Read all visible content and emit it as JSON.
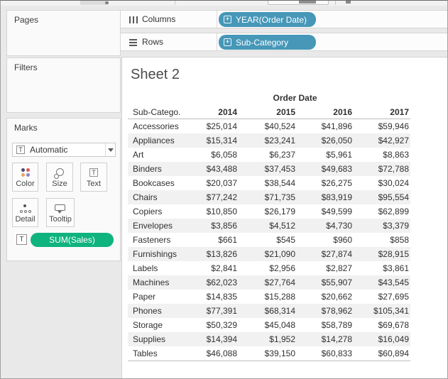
{
  "shelves": {
    "columns": {
      "label": "Columns",
      "pill": "YEAR(Order Date)"
    },
    "rows": {
      "label": "Rows",
      "pill": "Sub-Category"
    }
  },
  "panels": {
    "pages": {
      "label": "Pages"
    },
    "filters": {
      "label": "Filters"
    },
    "marks": {
      "label": "Marks",
      "mark_type_dropdown": {
        "value": "Automatic",
        "icon": "text-mark-icon"
      },
      "buttons": {
        "color": "Color",
        "size": "Size",
        "text": "Text",
        "detail": "Detail",
        "tooltip": "Tooltip"
      },
      "encoding_pill": "SUM(Sales)"
    }
  },
  "sheet": {
    "title": "Sheet 2"
  },
  "chart_data": {
    "type": "table",
    "title": "Sheet 2",
    "column_field": "Order Date",
    "row_field": "Sub-Category",
    "row_field_header": "Sub-Catego..",
    "measure": "SUM(Sales)",
    "columns": [
      "2014",
      "2015",
      "2016",
      "2017"
    ],
    "rows": [
      {
        "label": "Accessories",
        "values": [
          "$25,014",
          "$40,524",
          "$41,896",
          "$59,946"
        ]
      },
      {
        "label": "Appliances",
        "values": [
          "$15,314",
          "$23,241",
          "$26,050",
          "$42,927"
        ]
      },
      {
        "label": "Art",
        "values": [
          "$6,058",
          "$6,237",
          "$5,961",
          "$8,863"
        ]
      },
      {
        "label": "Binders",
        "values": [
          "$43,488",
          "$37,453",
          "$49,683",
          "$72,788"
        ]
      },
      {
        "label": "Bookcases",
        "values": [
          "$20,037",
          "$38,544",
          "$26,275",
          "$30,024"
        ]
      },
      {
        "label": "Chairs",
        "values": [
          "$77,242",
          "$71,735",
          "$83,919",
          "$95,554"
        ]
      },
      {
        "label": "Copiers",
        "values": [
          "$10,850",
          "$26,179",
          "$49,599",
          "$62,899"
        ]
      },
      {
        "label": "Envelopes",
        "values": [
          "$3,856",
          "$4,512",
          "$4,730",
          "$3,379"
        ]
      },
      {
        "label": "Fasteners",
        "values": [
          "$661",
          "$545",
          "$960",
          "$858"
        ]
      },
      {
        "label": "Furnishings",
        "values": [
          "$13,826",
          "$21,090",
          "$27,874",
          "$28,915"
        ]
      },
      {
        "label": "Labels",
        "values": [
          "$2,841",
          "$2,956",
          "$2,827",
          "$3,861"
        ]
      },
      {
        "label": "Machines",
        "values": [
          "$62,023",
          "$27,764",
          "$55,907",
          "$43,545"
        ]
      },
      {
        "label": "Paper",
        "values": [
          "$14,835",
          "$15,288",
          "$20,662",
          "$27,695"
        ]
      },
      {
        "label": "Phones",
        "values": [
          "$77,391",
          "$68,314",
          "$78,962",
          "$105,341"
        ]
      },
      {
        "label": "Storage",
        "values": [
          "$50,329",
          "$45,048",
          "$58,789",
          "$69,678"
        ]
      },
      {
        "label": "Supplies",
        "values": [
          "$14,394",
          "$1,952",
          "$14,278",
          "$16,049"
        ]
      },
      {
        "label": "Tables",
        "values": [
          "$46,088",
          "$39,150",
          "$60,833",
          "$60,894"
        ]
      }
    ]
  },
  "colors": {
    "dimension_pill_blue": "#4697b8",
    "measure_pill_green": "#0fb37d",
    "row_band": "#f1f1f1"
  },
  "icons": {
    "t_glyph": "T",
    "plus_glyph": "+"
  }
}
